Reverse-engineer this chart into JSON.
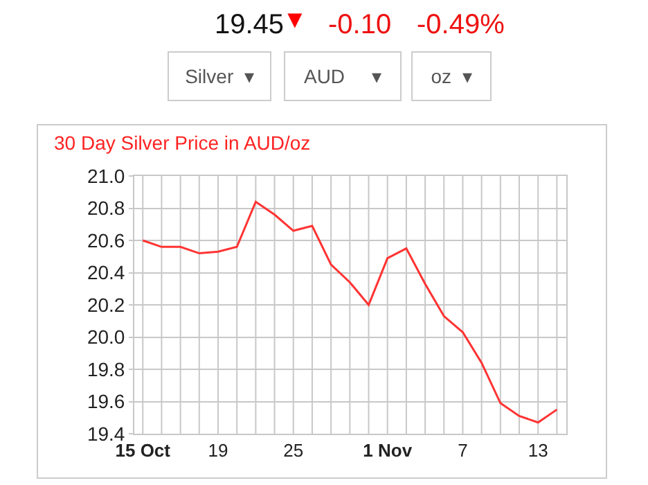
{
  "chart_data": {
    "type": "line",
    "title": "30 Day Silver Price in AUD/oz",
    "categories": [
      "15 Oct",
      null,
      null,
      null,
      "19",
      null,
      null,
      null,
      "25",
      null,
      null,
      null,
      null,
      "1 Nov",
      null,
      null,
      null,
      "7",
      null,
      null,
      null,
      "13",
      null
    ],
    "series": [
      {
        "color": "#ff3333",
        "values": [
          20.6,
          20.56,
          20.56,
          20.52,
          20.53,
          20.56,
          20.84,
          20.76,
          20.66,
          20.69,
          20.45,
          20.34,
          20.2,
          20.49,
          20.55,
          20.33,
          20.13,
          20.03,
          19.84,
          19.59,
          19.51,
          19.47,
          19.55
        ]
      }
    ],
    "ylim": [
      19.4,
      21.0
    ],
    "yticks": [
      19.4,
      19.6,
      19.8,
      {
        "value": 20.0,
        "label": "20.0"
      },
      20.2,
      20.4,
      20.6,
      20.8,
      {
        "value": 21.0,
        "label": "21.0"
      }
    ],
    "grid": true,
    "legend": false,
    "marker": "none",
    "line_style": "solid",
    "annotations": [
      "19.45",
      "▼",
      "-0.10",
      "-0.49%",
      "Silver  ▾",
      "AUD     ▾",
      "oz  ▾"
    ]
  }
}
